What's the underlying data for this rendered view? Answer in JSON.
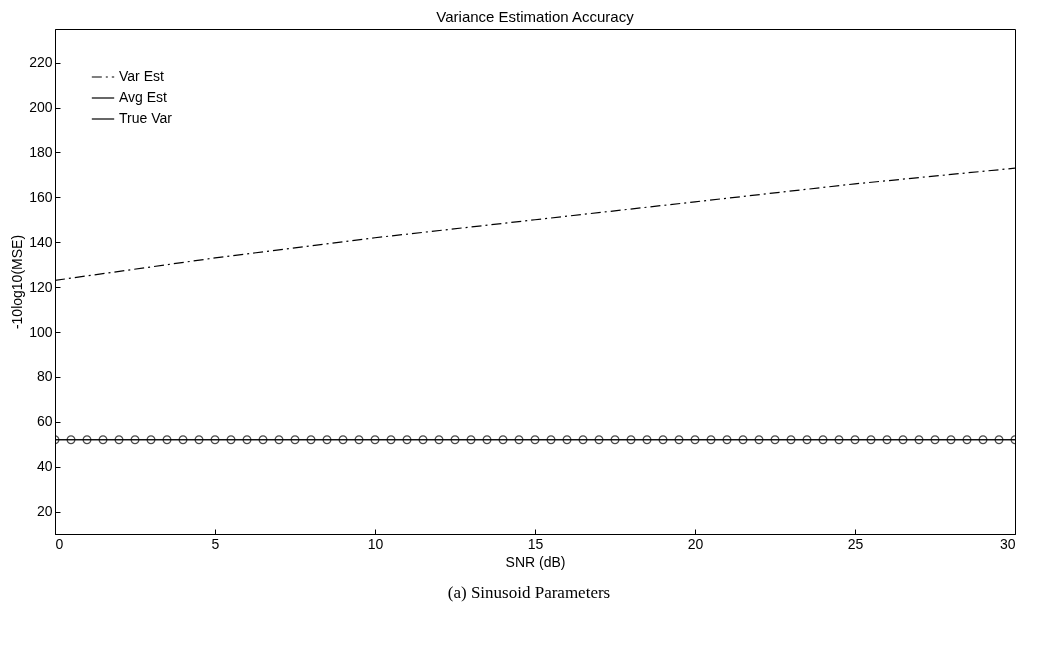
{
  "chart_data": {
    "type": "line",
    "title": "Variance Estimation Accuracy",
    "xlabel": "SNR (dB)",
    "ylabel": "-10log10(MSE)",
    "annotations": [
      "(a) Sinusoid Parameters"
    ],
    "xlim": [
      0,
      30
    ],
    "xticks": [
      0,
      5,
      10,
      15,
      20,
      25,
      30
    ],
    "ylim": [
      10,
      235
    ],
    "yticks": [
      20,
      40,
      60,
      80,
      100,
      120,
      140,
      160,
      180,
      200,
      220
    ],
    "grid": false,
    "legend": "top left",
    "series": [
      {
        "name": "Var Est",
        "color": "#000000",
        "line_style": "dashed",
        "marker": "none",
        "x": [
          0,
          5,
          10,
          15,
          20,
          25,
          30
        ],
        "values": [
          123,
          133,
          142,
          150,
          158,
          166,
          173
        ]
      },
      {
        "name": "Avg Est",
        "color": "#000000",
        "line_style": "solid",
        "marker": "circle",
        "x": [
          0,
          0.5,
          1,
          1.5,
          2,
          2.5,
          3,
          3.5,
          4,
          4.5,
          5,
          5.5,
          6,
          6.5,
          7,
          7.5,
          8,
          8.5,
          9,
          9.5,
          10,
          10.5,
          11,
          11.5,
          12,
          12.5,
          13,
          13.5,
          14,
          14.5,
          15,
          15.5,
          16,
          16.5,
          17,
          17.5,
          18,
          18.5,
          19,
          19.5,
          20,
          20.5,
          21,
          21.5,
          22,
          22.5,
          23,
          23.5,
          24,
          24.5,
          25,
          25.5,
          26,
          26.5,
          27,
          27.5,
          28,
          28.5,
          29,
          29.5,
          30
        ],
        "values": [
          52,
          52,
          52,
          52,
          52,
          52,
          52,
          52,
          52,
          52,
          52,
          52,
          52,
          52,
          52,
          52,
          52,
          52,
          52,
          52,
          52,
          52,
          52,
          52,
          52,
          52,
          52,
          52,
          52,
          52,
          52,
          52,
          52,
          52,
          52,
          52,
          52,
          52,
          52,
          52,
          52,
          52,
          52,
          52,
          52,
          52,
          52,
          52,
          52,
          52,
          52,
          52,
          52,
          52,
          52,
          52,
          52,
          52,
          52,
          52,
          52
        ]
      },
      {
        "name": "True Var",
        "color": "#000000",
        "line_style": "solid",
        "marker": "none",
        "x": [
          0,
          30
        ],
        "values": [
          52,
          52
        ]
      }
    ]
  }
}
